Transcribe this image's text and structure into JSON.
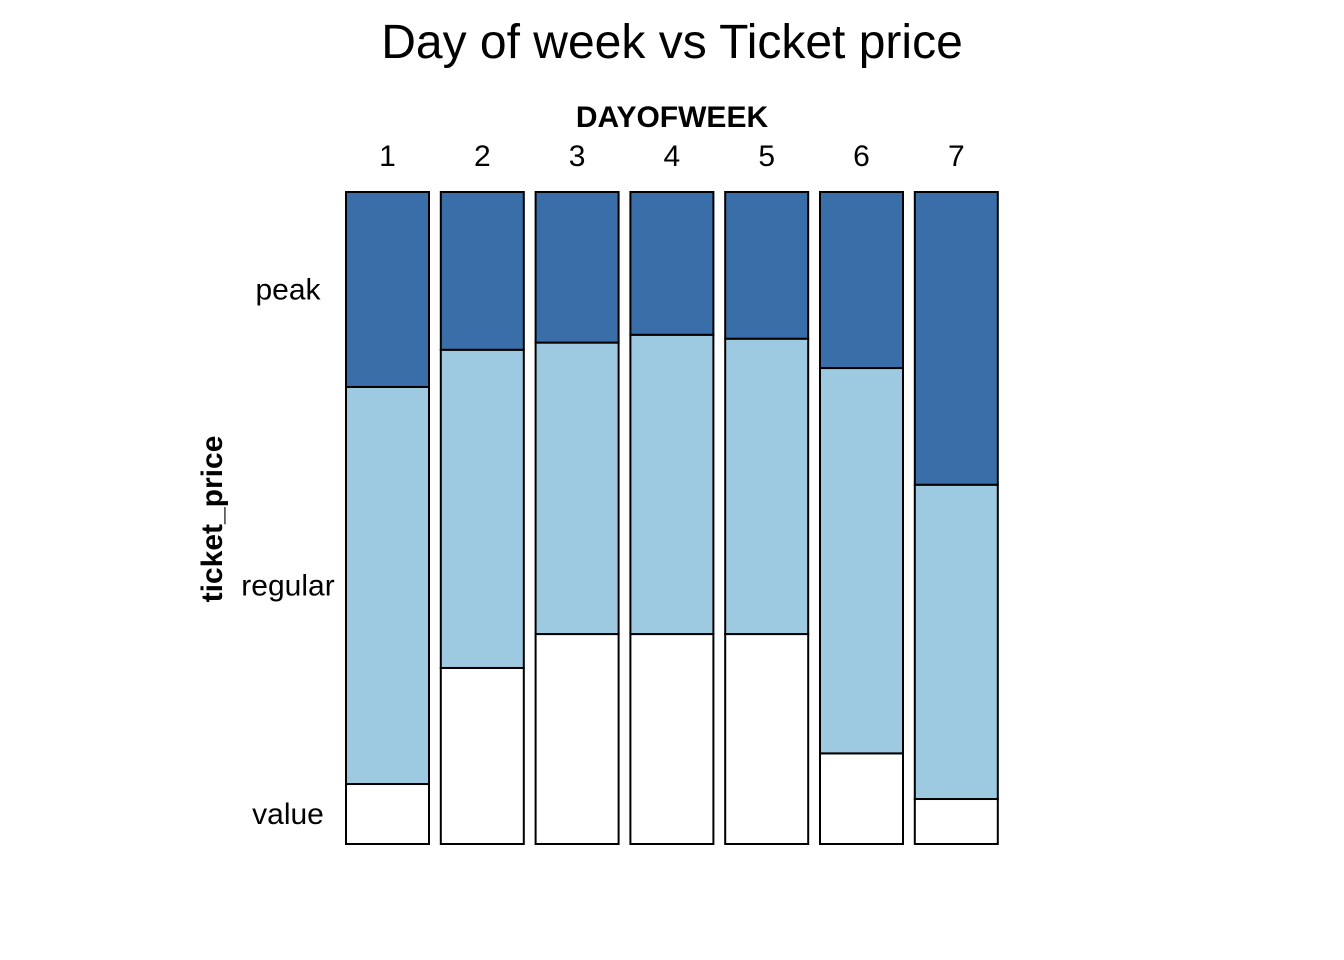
{
  "chart_data": {
    "type": "bar",
    "stacked": true,
    "normalized": true,
    "orientation": "vertical",
    "title": "Day of week vs Ticket price",
    "xlabel": "DAYOFWEEK",
    "ylabel": "ticket_price",
    "x_axis_position": "top",
    "categories": [
      "1",
      "2",
      "3",
      "4",
      "5",
      "6",
      "7"
    ],
    "ylim": [
      0,
      1
    ],
    "grid": false,
    "legend": "none",
    "series": [
      {
        "name": "value",
        "color": "#ffffff",
        "values": [
          0.092,
          0.27,
          0.322,
          0.322,
          0.322,
          0.139,
          0.069
        ]
      },
      {
        "name": "regular",
        "color": "#9ecae1",
        "values": [
          0.609,
          0.488,
          0.447,
          0.459,
          0.453,
          0.591,
          0.482
        ]
      },
      {
        "name": "peak",
        "color": "#3a6ea8",
        "values": [
          0.299,
          0.242,
          0.231,
          0.219,
          0.225,
          0.27,
          0.449
        ]
      }
    ]
  }
}
